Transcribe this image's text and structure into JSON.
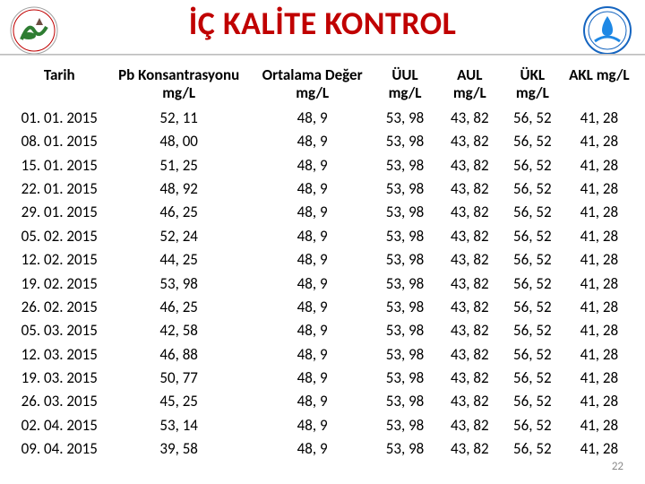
{
  "title": "İÇ KALİTE KONTROL",
  "page_number": "22",
  "columns": [
    {
      "line1": "Tarih",
      "line2": ""
    },
    {
      "line1": "Pb Konsantrasyonu",
      "line2": "mg/L"
    },
    {
      "line1": "Ortalama Değer",
      "line2": "mg/L"
    },
    {
      "line1": "ÜUL",
      "line2": "mg/L"
    },
    {
      "line1": "AUL",
      "line2": "mg/L"
    },
    {
      "line1": "ÜKL",
      "line2": "mg/L"
    },
    {
      "line1": "AKL mg/L",
      "line2": ""
    }
  ],
  "rows": [
    [
      "01. 01. 2015",
      "52, 11",
      "48, 9",
      "53, 98",
      "43, 82",
      "56, 52",
      "41, 28"
    ],
    [
      "08. 01. 2015",
      "48, 00",
      "48, 9",
      "53, 98",
      "43, 82",
      "56, 52",
      "41, 28"
    ],
    [
      "15. 01. 2015",
      "51, 25",
      "48, 9",
      "53, 98",
      "43, 82",
      "56, 52",
      "41, 28"
    ],
    [
      "22. 01. 2015",
      "48, 92",
      "48, 9",
      "53, 98",
      "43, 82",
      "56, 52",
      "41, 28"
    ],
    [
      "29. 01. 2015",
      "46, 25",
      "48, 9",
      "53, 98",
      "43, 82",
      "56, 52",
      "41, 28"
    ],
    [
      "05. 02. 2015",
      "52, 24",
      "48, 9",
      "53, 98",
      "43, 82",
      "56, 52",
      "41, 28"
    ],
    [
      "12. 02. 2015",
      "44, 25",
      "48, 9",
      "53, 98",
      "43, 82",
      "56, 52",
      "41, 28"
    ],
    [
      "19. 02. 2015",
      "53, 98",
      "48, 9",
      "53, 98",
      "43, 82",
      "56, 52",
      "41, 28"
    ],
    [
      "26. 02. 2015",
      "46, 25",
      "48, 9",
      "53, 98",
      "43, 82",
      "56, 52",
      "41, 28"
    ],
    [
      "05. 03. 2015",
      "42, 58",
      "48, 9",
      "53, 98",
      "43, 82",
      "56, 52",
      "41, 28"
    ],
    [
      "12. 03. 2015",
      "46, 88",
      "48, 9",
      "53, 98",
      "43, 82",
      "56, 52",
      "41, 28"
    ],
    [
      "19. 03. 2015",
      "50, 77",
      "48, 9",
      "53, 98",
      "43, 82",
      "56, 52",
      "41, 28"
    ],
    [
      "26. 03. 2015",
      "45, 25",
      "48, 9",
      "53, 98",
      "43, 82",
      "56, 52",
      "41, 28"
    ],
    [
      "02. 04. 2015",
      "53, 14",
      "48, 9",
      "53, 98",
      "43, 82",
      "56, 52",
      "41, 28"
    ],
    [
      "09. 04. 2015",
      "39, 58",
      "48, 9",
      "53, 98",
      "43, 82",
      "56, 52",
      "41, 28"
    ]
  ],
  "col_classes": [
    "c-tarih",
    "c-pb",
    "c-ort",
    "c-uul",
    "c-aul",
    "c-ukl",
    "c-akl"
  ],
  "colors": {
    "title": "#c00000",
    "text": "#000000",
    "rule": "#b5b5b5",
    "pagenum": "#8a8a8a"
  }
}
